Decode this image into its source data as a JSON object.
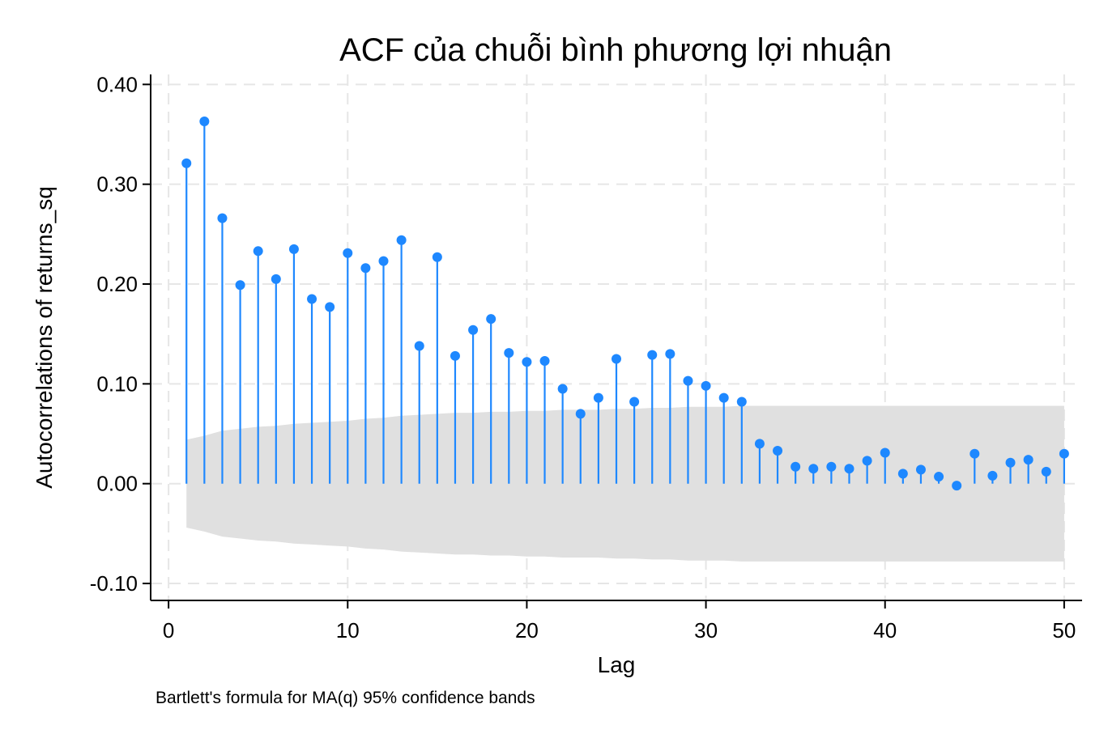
{
  "chart_data": {
    "type": "stem",
    "title": "ACF của chuỗi bình phương lợi nhuận",
    "xlabel": "Lag",
    "ylabel": "Autocorrelations of returns_sq",
    "note": "Bartlett's formula for MA(q) 95% confidence bands",
    "xlim": [
      -1,
      51
    ],
    "ylim": [
      -0.117,
      0.41
    ],
    "x_ticks": [
      0,
      10,
      20,
      30,
      40,
      50
    ],
    "x_tick_labels": [
      "0",
      "10",
      "20",
      "30",
      "40",
      "50"
    ],
    "y_ticks": [
      -0.1,
      0,
      0.1,
      0.2,
      0.3,
      0.4
    ],
    "y_tick_labels": [
      "-0.10",
      "0.00",
      "0.10",
      "0.20",
      "0.30",
      "0.40"
    ],
    "grid": true,
    "colors": {
      "series": "#1e88ff",
      "band": "#e0e0e0",
      "grid": "#e6e6e6",
      "axis": "#000000"
    },
    "series": [
      {
        "lags": [
          1,
          2,
          3,
          4,
          5,
          6,
          7,
          8,
          9,
          10,
          11,
          12,
          13,
          14,
          15,
          16,
          17,
          18,
          19,
          20,
          21,
          22,
          23,
          24,
          25,
          26,
          27,
          28,
          29,
          30,
          31,
          32,
          33,
          34,
          35,
          36,
          37,
          38,
          39,
          40,
          41,
          42,
          43,
          44,
          45,
          46,
          47,
          48,
          49,
          50
        ],
        "values": [
          0.321,
          0.363,
          0.266,
          0.199,
          0.233,
          0.205,
          0.235,
          0.185,
          0.177,
          0.231,
          0.216,
          0.223,
          0.244,
          0.138,
          0.227,
          0.128,
          0.154,
          0.165,
          0.131,
          0.122,
          0.123,
          0.095,
          0.07,
          0.086,
          0.125,
          0.082,
          0.129,
          0.13,
          0.103,
          0.098,
          0.086,
          0.082,
          0.04,
          0.033,
          0.017,
          0.015,
          0.017,
          0.015,
          0.023,
          0.031,
          0.01,
          0.014,
          0.007,
          -0.002,
          0.03,
          0.008,
          0.021,
          0.024,
          0.012,
          0.03
        ]
      }
    ],
    "confidence_band": {
      "lags": [
        1,
        2,
        3,
        4,
        5,
        6,
        7,
        8,
        9,
        10,
        11,
        12,
        13,
        14,
        15,
        16,
        17,
        18,
        19,
        20,
        21,
        22,
        23,
        24,
        25,
        26,
        27,
        28,
        29,
        30,
        31,
        32,
        33,
        34,
        35,
        36,
        37,
        38,
        39,
        40,
        41,
        42,
        43,
        44,
        45,
        46,
        47,
        48,
        49,
        50
      ],
      "upper": [
        0.044,
        0.048,
        0.053,
        0.055,
        0.057,
        0.058,
        0.06,
        0.061,
        0.062,
        0.063,
        0.065,
        0.066,
        0.068,
        0.069,
        0.07,
        0.071,
        0.071,
        0.072,
        0.072,
        0.073,
        0.073,
        0.074,
        0.074,
        0.074,
        0.075,
        0.075,
        0.076,
        0.076,
        0.077,
        0.077,
        0.077,
        0.078,
        0.078,
        0.078,
        0.078,
        0.078,
        0.078,
        0.078,
        0.078,
        0.078,
        0.078,
        0.078,
        0.078,
        0.078,
        0.078,
        0.078,
        0.078,
        0.078,
        0.078,
        0.078
      ]
    }
  }
}
